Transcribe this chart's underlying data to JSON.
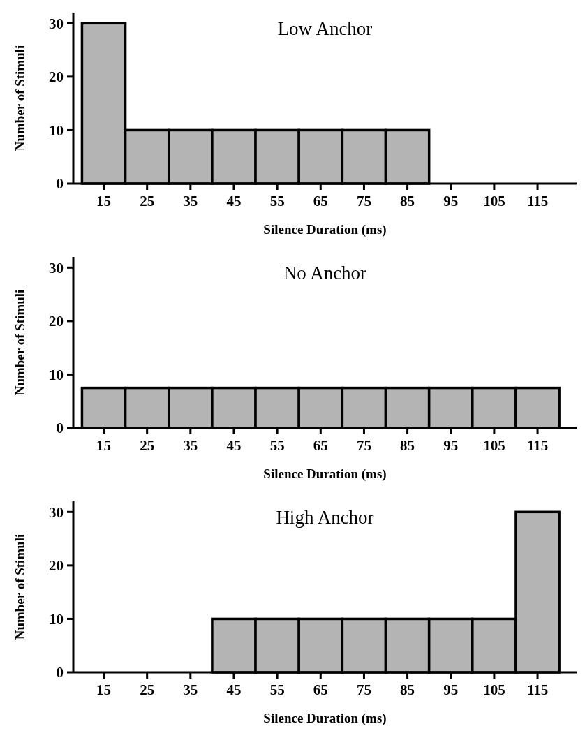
{
  "chart_data": [
    {
      "type": "histogram",
      "title": "Low Anchor",
      "xlabel": "Silence Duration (ms)",
      "ylabel": "Number of Stimuli",
      "bins": [
        10,
        20,
        30,
        40,
        50,
        60,
        70,
        80,
        90,
        100,
        110,
        120
      ],
      "values": [
        30,
        10,
        10,
        10,
        10,
        10,
        10,
        10,
        0,
        0,
        0
      ],
      "color": "#b4b4b4",
      "xlim": [
        8,
        124
      ],
      "xticks": [
        15,
        25,
        35,
        45,
        55,
        65,
        75,
        85,
        95,
        105,
        115
      ],
      "ylim": [
        0,
        32
      ],
      "yticks": [
        0,
        10,
        20,
        30
      ]
    },
    {
      "type": "histogram",
      "title": "No Anchor",
      "xlabel": "Silence Duration (ms)",
      "ylabel": "Number of Stimuli",
      "bins": [
        10,
        20,
        30,
        40,
        50,
        60,
        70,
        80,
        90,
        100,
        110,
        120
      ],
      "values": [
        7.5,
        7.5,
        7.5,
        7.5,
        7.5,
        7.5,
        7.5,
        7.5,
        7.5,
        7.5,
        7.5
      ],
      "color": "#b4b4b4",
      "xlim": [
        8,
        124
      ],
      "xticks": [
        15,
        25,
        35,
        45,
        55,
        65,
        75,
        85,
        95,
        105,
        115
      ],
      "ylim": [
        0,
        32
      ],
      "yticks": [
        0,
        10,
        20,
        30
      ]
    },
    {
      "type": "histogram",
      "title": "High Anchor",
      "xlabel": "Silence Duration (ms)",
      "ylabel": "Number of Stimuli",
      "bins": [
        10,
        20,
        30,
        40,
        50,
        60,
        70,
        80,
        90,
        100,
        110,
        120
      ],
      "values": [
        0,
        0,
        0,
        10,
        10,
        10,
        10,
        10,
        10,
        10,
        30
      ],
      "color": "#b4b4b4",
      "xlim": [
        8,
        124
      ],
      "xticks": [
        15,
        25,
        35,
        45,
        55,
        65,
        75,
        85,
        95,
        105,
        115
      ],
      "ylim": [
        0,
        32
      ],
      "yticks": [
        0,
        10,
        20,
        30
      ]
    }
  ]
}
